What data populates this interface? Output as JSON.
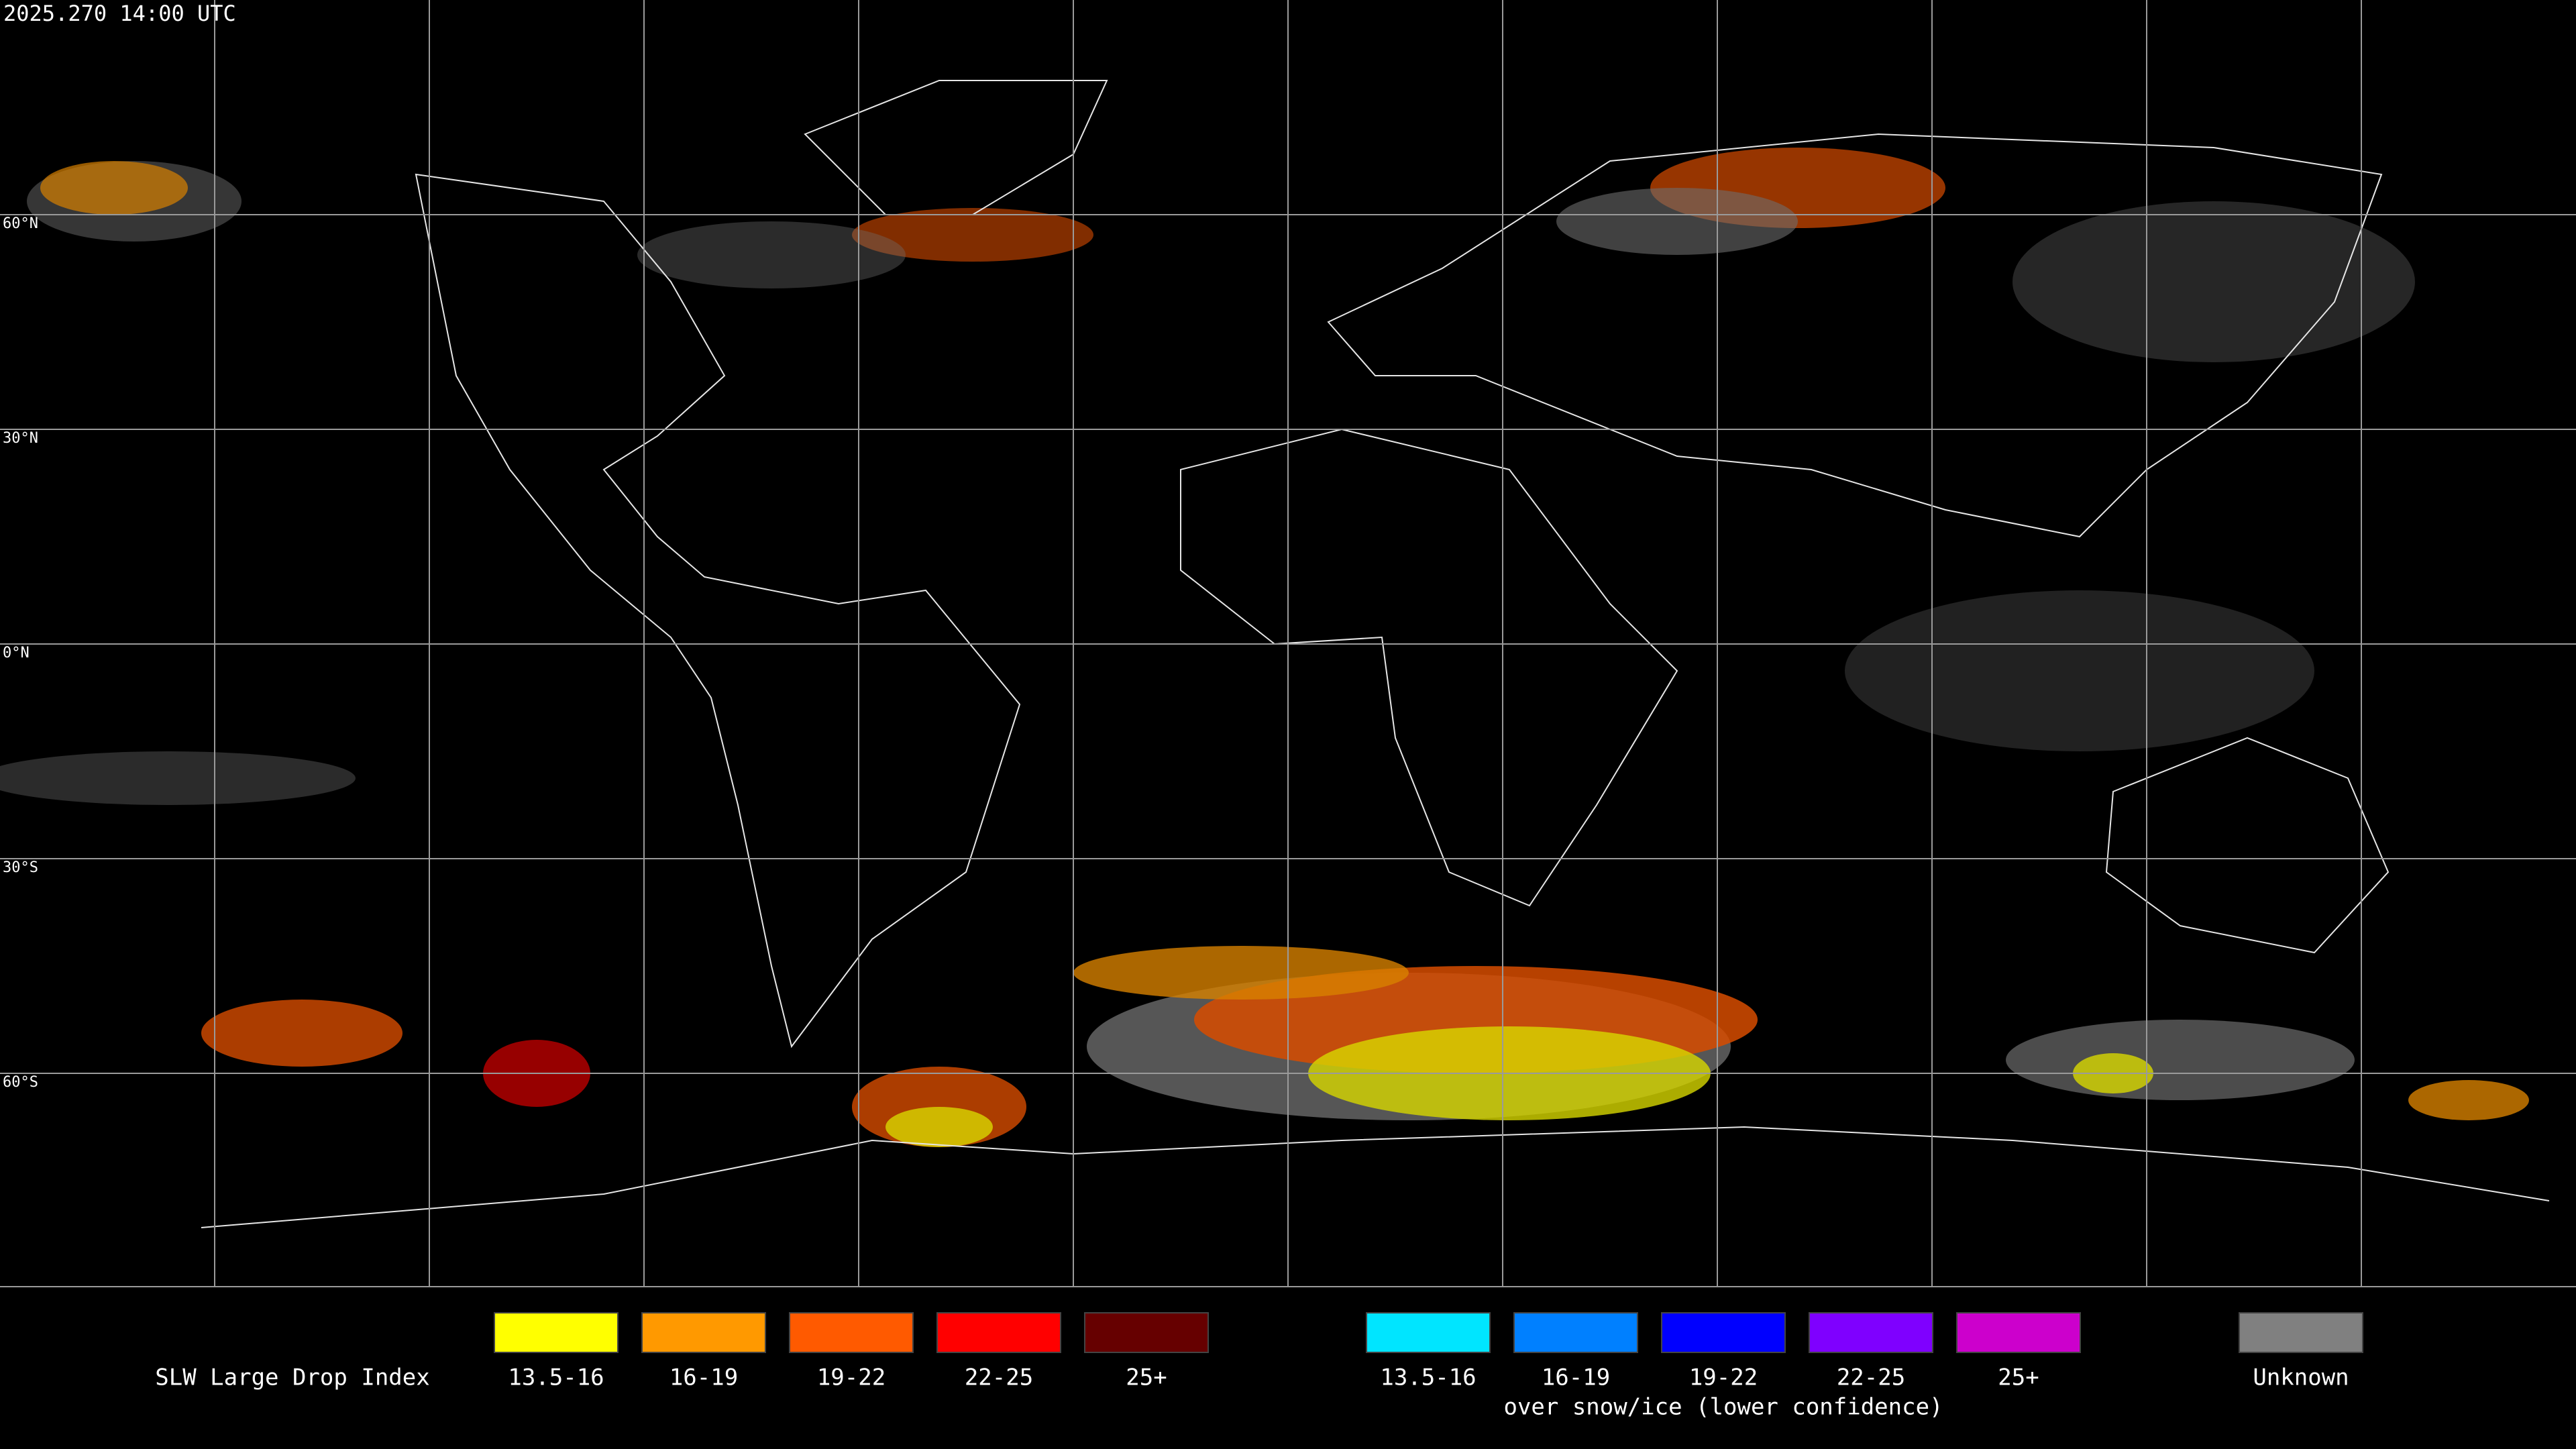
{
  "timestamp": "2025.270 14:00 UTC",
  "lat_labels": [
    "60°N",
    "30°N",
    "0°N",
    "30°S",
    "60°S"
  ],
  "legend": {
    "title": "SLW Large Drop Index",
    "groups": [
      {
        "items": [
          {
            "label": "13.5-16",
            "color": "#ffff00"
          },
          {
            "label": "16-19",
            "color": "#ff9900"
          },
          {
            "label": "19-22",
            "color": "#ff5a00"
          },
          {
            "label": "22-25",
            "color": "#ff0000"
          },
          {
            "label": "25+",
            "color": "#660000"
          }
        ]
      },
      {
        "note": "over snow/ice (lower confidence)",
        "items": [
          {
            "label": "13.5-16",
            "color": "#00e5ff"
          },
          {
            "label": "16-19",
            "color": "#0080ff"
          },
          {
            "label": "19-22",
            "color": "#0000ff"
          },
          {
            "label": "22-25",
            "color": "#7f00ff"
          },
          {
            "label": "25+",
            "color": "#cc00cc"
          }
        ]
      },
      {
        "items": [
          {
            "label": "Unknown",
            "color": "#808080"
          }
        ]
      }
    ]
  }
}
